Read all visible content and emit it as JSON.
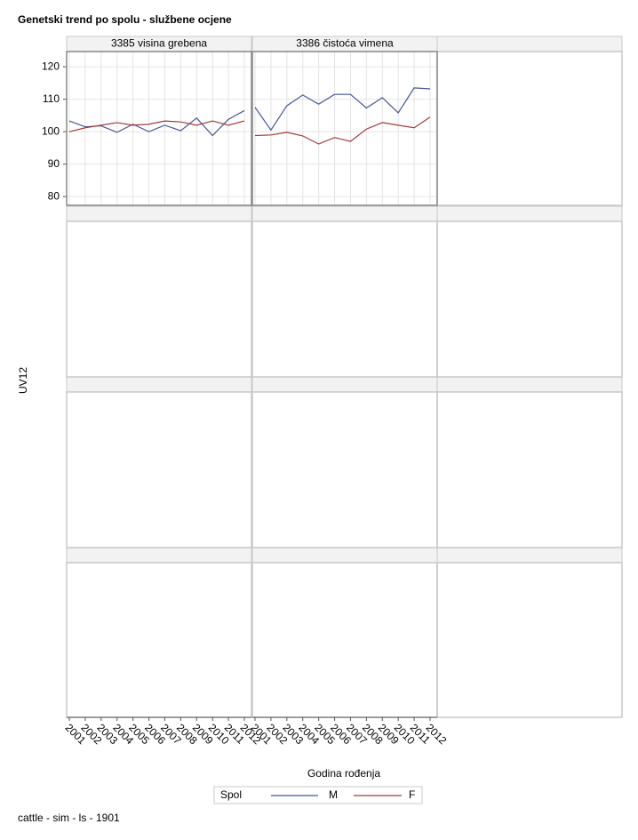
{
  "title": "Genetski trend po spolu - službene ocjene",
  "x_label": "Godina rođenja",
  "y_label": "UV12",
  "legend_title": "Spol",
  "footnote": "cattle - sim - ls - 1901",
  "chart_data": [
    {
      "type": "line",
      "title": "3385 visina grebena",
      "categories": [
        "2001",
        "2002",
        "2003",
        "2004",
        "2005",
        "2006",
        "2007",
        "2008",
        "2009",
        "2010",
        "2011",
        "2012"
      ],
      "ylim": [
        77.3,
        124.7
      ],
      "yticks": [
        80,
        90,
        100,
        110,
        120
      ],
      "grid": true,
      "series": [
        {
          "name": "M",
          "color": "#445694",
          "values": [
            103.3,
            101.5,
            101.8,
            99.8,
            102.3,
            100.0,
            102.0,
            100.3,
            104.2,
            98.8,
            103.8,
            106.5
          ]
        },
        {
          "name": "F",
          "color": "#a23a3a",
          "values": [
            100.0,
            101.2,
            102.0,
            102.8,
            102.0,
            102.3,
            103.3,
            103.0,
            102.0,
            103.3,
            102.0,
            103.3
          ]
        }
      ]
    },
    {
      "type": "line",
      "title": "3386 čistoća vimena",
      "categories": [
        "2001",
        "2002",
        "2003",
        "2004",
        "2005",
        "2006",
        "2007",
        "2008",
        "2009",
        "2010",
        "2011",
        "2012"
      ],
      "ylim": [
        77.3,
        124.7
      ],
      "yticks": [
        80,
        90,
        100,
        110,
        120
      ],
      "grid": true,
      "series": [
        {
          "name": "M",
          "color": "#445694",
          "values": [
            107.5,
            100.5,
            108.0,
            111.3,
            108.5,
            111.5,
            111.5,
            107.3,
            110.5,
            105.8,
            113.5,
            113.2
          ]
        },
        {
          "name": "F",
          "color": "#a23a3a",
          "values": [
            98.8,
            99.0,
            99.8,
            98.7,
            96.2,
            98.2,
            97.0,
            100.8,
            102.8,
            102.0,
            101.2,
            104.5
          ]
        }
      ]
    }
  ]
}
